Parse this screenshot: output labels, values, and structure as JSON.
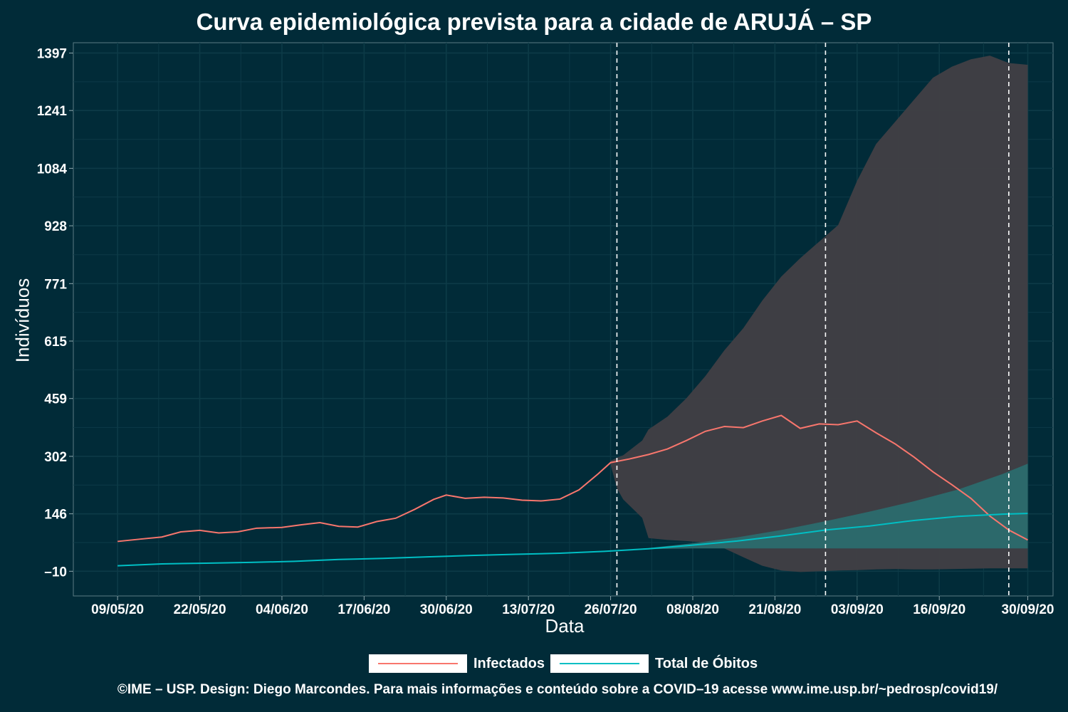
{
  "title": "Curva epidemiológica prevista para a cidade de ARUJÁ – SP",
  "footer": "©IME – USP. Design: Diego Marcondes. Para mais informações e conteúdo sobre a COVID–19 acesse www.ime.usp.br/~pedrosp/covid19/",
  "colors": {
    "background": "#012b38",
    "infectados": "#f8766d",
    "obitos": "#00bfc4",
    "band_infectados": "#413f45",
    "band_obitos": "#2b6b6e",
    "gridline": "#0d3b47",
    "vline": "#ffffff"
  },
  "legend": {
    "items": [
      {
        "label": "Infectados",
        "color": "#f8766d"
      },
      {
        "label": "Total de Óbitos",
        "color": "#00bfc4"
      }
    ]
  },
  "chart_data": {
    "type": "line",
    "title": "Curva epidemiológica prevista para a cidade de ARUJÁ – SP",
    "xlabel": "Data",
    "ylabel": "Indivíduos",
    "x_ticks": [
      "09/05/20",
      "22/05/20",
      "04/06/20",
      "17/06/20",
      "30/06/20",
      "13/07/20",
      "26/07/20",
      "08/08/20",
      "21/08/20",
      "03/09/20",
      "16/09/20",
      "30/09/20"
    ],
    "y_ticks": [
      -10,
      146,
      302,
      459,
      615,
      771,
      928,
      1084,
      1241,
      1397
    ],
    "xlim": [
      "2020-05-02",
      "2020-10-04"
    ],
    "ylim": [
      -77,
      1425
    ],
    "grid": true,
    "legend_position": "bottom",
    "vlines": [
      "2020-07-27",
      "2020-08-29",
      "2020-09-27"
    ],
    "series": [
      {
        "name": "Infectados",
        "color": "#f8766d",
        "points": [
          [
            "2020-05-09",
            71
          ],
          [
            "2020-05-13",
            78
          ],
          [
            "2020-05-16",
            83
          ],
          [
            "2020-05-19",
            97
          ],
          [
            "2020-05-22",
            101
          ],
          [
            "2020-05-25",
            94
          ],
          [
            "2020-05-28",
            97
          ],
          [
            "2020-05-31",
            107
          ],
          [
            "2020-06-04",
            109
          ],
          [
            "2020-06-07",
            116
          ],
          [
            "2020-06-10",
            122
          ],
          [
            "2020-06-13",
            112
          ],
          [
            "2020-06-16",
            110
          ],
          [
            "2020-06-19",
            125
          ],
          [
            "2020-06-22",
            134
          ],
          [
            "2020-06-25",
            158
          ],
          [
            "2020-06-28",
            185
          ],
          [
            "2020-06-30",
            197
          ],
          [
            "2020-07-03",
            188
          ],
          [
            "2020-07-06",
            191
          ],
          [
            "2020-07-09",
            189
          ],
          [
            "2020-07-12",
            183
          ],
          [
            "2020-07-15",
            181
          ],
          [
            "2020-07-18",
            186
          ],
          [
            "2020-07-21",
            211
          ],
          [
            "2020-07-24",
            254
          ],
          [
            "2020-07-26",
            285
          ],
          [
            "2020-07-29",
            295
          ],
          [
            "2020-08-01",
            307
          ],
          [
            "2020-08-04",
            322
          ],
          [
            "2020-08-07",
            345
          ],
          [
            "2020-08-10",
            370
          ],
          [
            "2020-08-13",
            383
          ],
          [
            "2020-08-16",
            380
          ],
          [
            "2020-08-19",
            398
          ],
          [
            "2020-08-22",
            413
          ],
          [
            "2020-08-25",
            378
          ],
          [
            "2020-08-28",
            390
          ],
          [
            "2020-08-31",
            388
          ],
          [
            "2020-09-03",
            398
          ],
          [
            "2020-09-06",
            366
          ],
          [
            "2020-09-09",
            336
          ],
          [
            "2020-09-12",
            300
          ],
          [
            "2020-09-15",
            260
          ],
          [
            "2020-09-18",
            225
          ],
          [
            "2020-09-21",
            188
          ],
          [
            "2020-09-24",
            140
          ],
          [
            "2020-09-27",
            102
          ],
          [
            "2020-09-30",
            75
          ]
        ]
      },
      {
        "name": "Total de Óbitos",
        "color": "#00bfc4",
        "points": [
          [
            "2020-05-09",
            5
          ],
          [
            "2020-05-16",
            10
          ],
          [
            "2020-05-23",
            12
          ],
          [
            "2020-05-30",
            14
          ],
          [
            "2020-06-06",
            17
          ],
          [
            "2020-06-13",
            22
          ],
          [
            "2020-06-20",
            25
          ],
          [
            "2020-06-27",
            29
          ],
          [
            "2020-07-04",
            33
          ],
          [
            "2020-07-11",
            36
          ],
          [
            "2020-07-18",
            39
          ],
          [
            "2020-07-25",
            44
          ],
          [
            "2020-08-01",
            51
          ],
          [
            "2020-08-08",
            61
          ],
          [
            "2020-08-15",
            72
          ],
          [
            "2020-08-22",
            86
          ],
          [
            "2020-08-29",
            102
          ],
          [
            "2020-09-05",
            113
          ],
          [
            "2020-09-12",
            128
          ],
          [
            "2020-09-19",
            139
          ],
          [
            "2020-09-26",
            145
          ],
          [
            "2020-09-30",
            147
          ]
        ]
      }
    ],
    "bands": [
      {
        "series": "Infectados",
        "color": "#413f45",
        "points": [
          [
            "2020-07-26",
            290,
            280
          ],
          [
            "2020-07-27",
            298,
            215
          ],
          [
            "2020-07-28",
            305,
            185
          ],
          [
            "2020-07-31",
            345,
            135
          ],
          [
            "2020-08-01",
            375,
            80
          ],
          [
            "2020-08-04",
            410,
            75
          ],
          [
            "2020-08-07",
            460,
            72
          ],
          [
            "2020-08-10",
            520,
            68
          ],
          [
            "2020-08-13",
            590,
            52
          ],
          [
            "2020-08-16",
            650,
            28
          ],
          [
            "2020-08-19",
            725,
            5
          ],
          [
            "2020-08-22",
            790,
            -8
          ],
          [
            "2020-08-25",
            840,
            -12
          ],
          [
            "2020-08-28",
            885,
            -10
          ],
          [
            "2020-08-31",
            930,
            -8
          ],
          [
            "2020-09-03",
            1050,
            -7
          ],
          [
            "2020-09-06",
            1150,
            -5
          ],
          [
            "2020-09-09",
            1210,
            -4
          ],
          [
            "2020-09-12",
            1270,
            -5
          ],
          [
            "2020-09-15",
            1330,
            -5
          ],
          [
            "2020-09-18",
            1360,
            -4
          ],
          [
            "2020-09-21",
            1380,
            -3
          ],
          [
            "2020-09-24",
            1390,
            -2
          ],
          [
            "2020-09-27",
            1370,
            -2
          ],
          [
            "2020-09-30",
            1365,
            -2
          ]
        ]
      },
      {
        "series": "Total de Óbitos",
        "color": "#2b6b6e",
        "points": [
          [
            "2020-07-26",
            44,
            44
          ],
          [
            "2020-08-01",
            53,
            50
          ],
          [
            "2020-08-08",
            66,
            52
          ],
          [
            "2020-08-15",
            82,
            52
          ],
          [
            "2020-08-22",
            102,
            52
          ],
          [
            "2020-08-29",
            126,
            52
          ],
          [
            "2020-09-05",
            152,
            52
          ],
          [
            "2020-09-12",
            180,
            52
          ],
          [
            "2020-09-19",
            212,
            52
          ],
          [
            "2020-09-26",
            254,
            52
          ],
          [
            "2020-09-30",
            282,
            52
          ]
        ]
      }
    ]
  }
}
